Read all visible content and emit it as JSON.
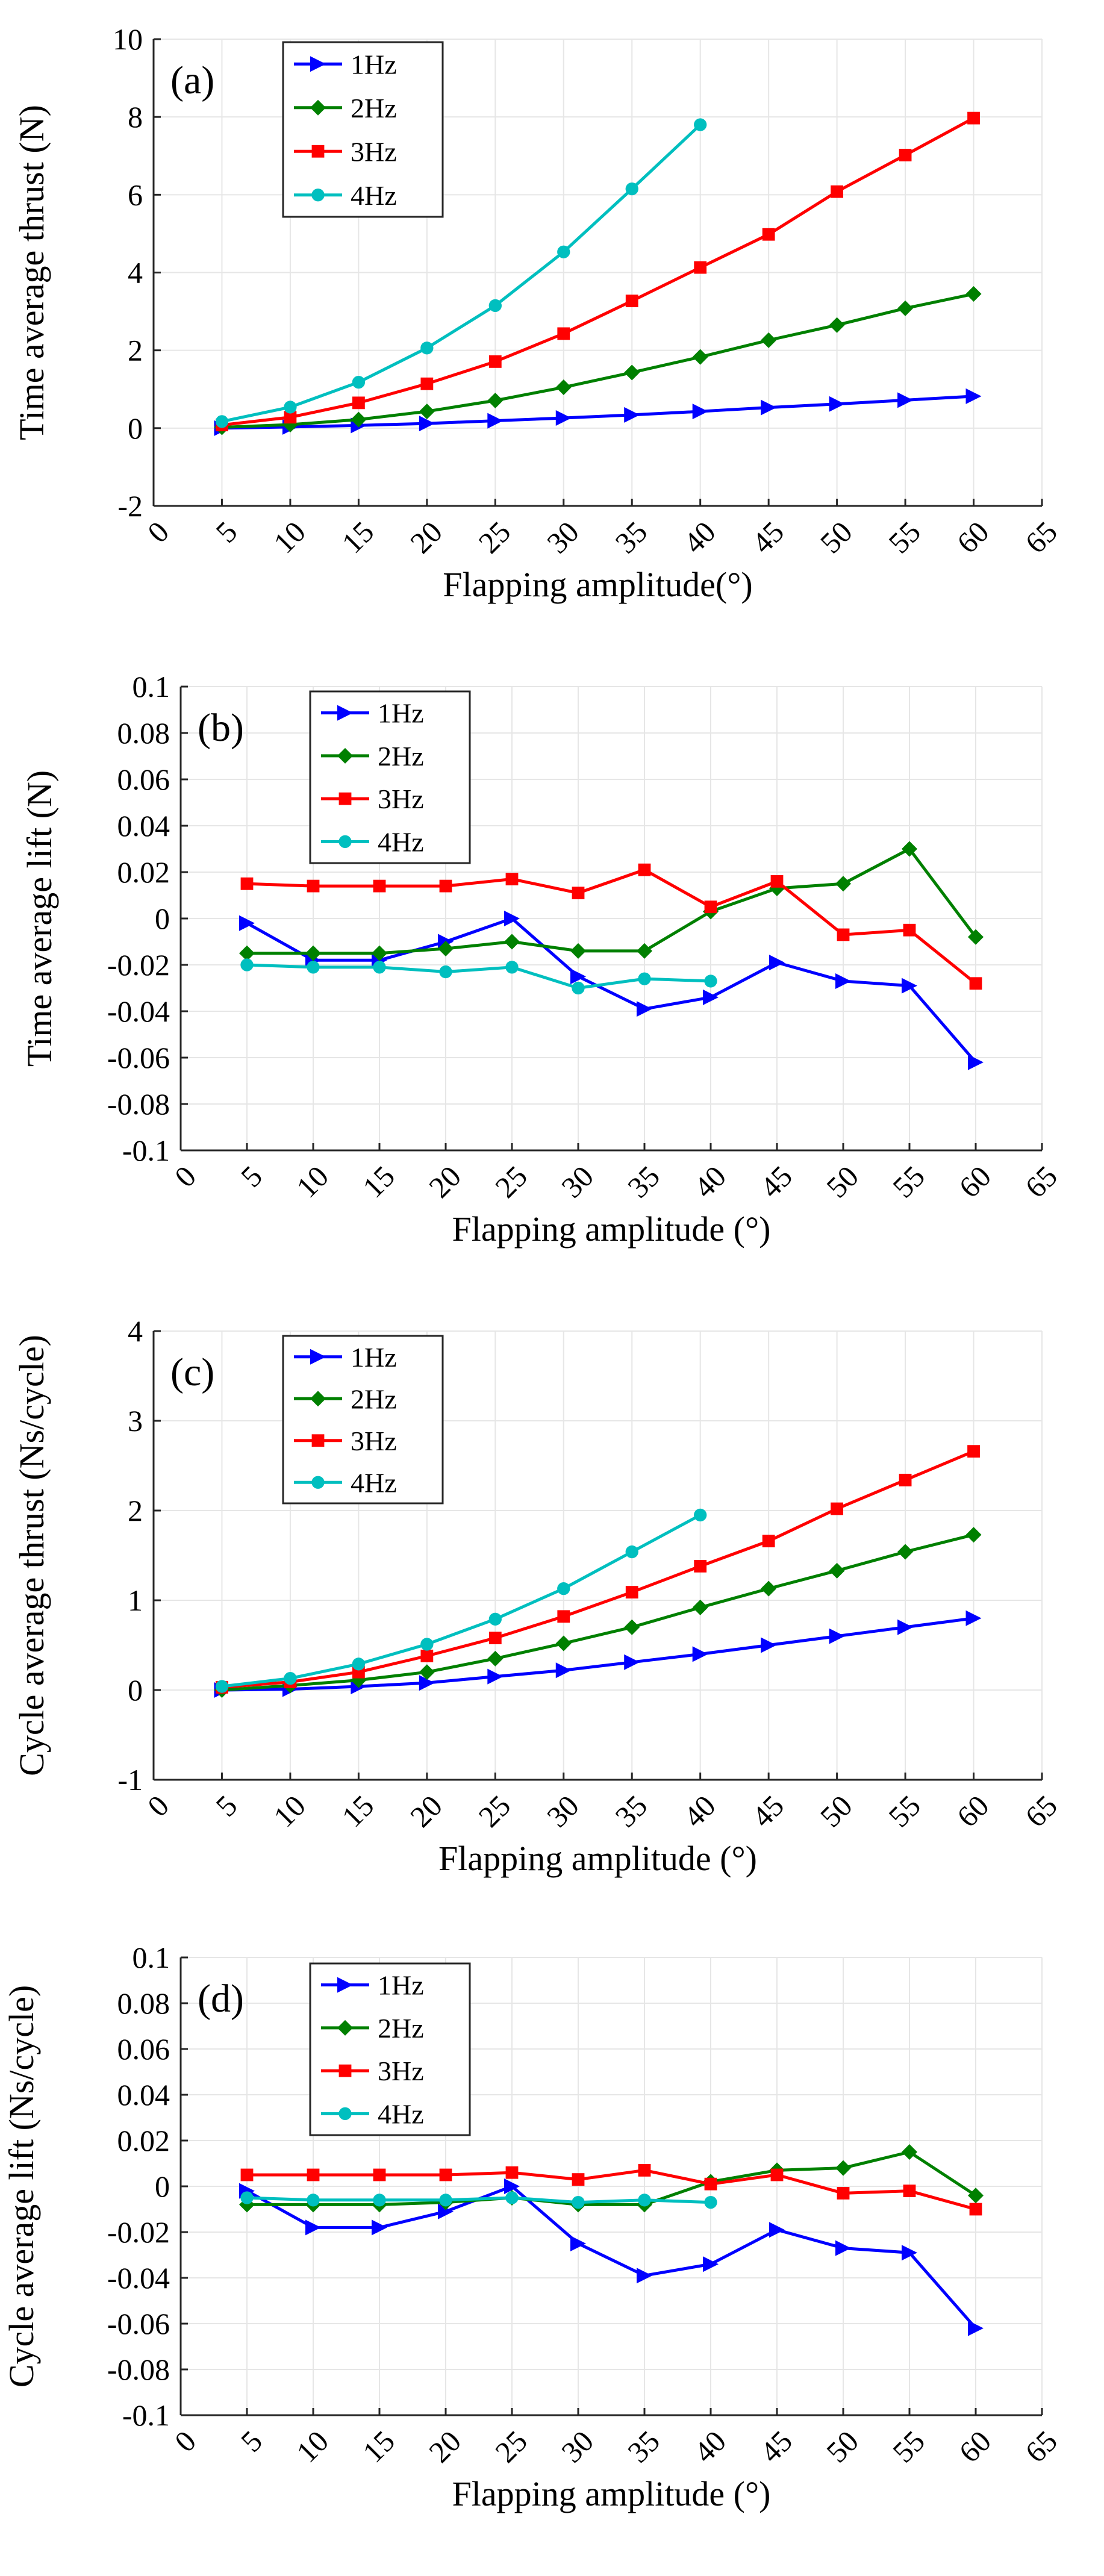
{
  "chart_data": [
    {
      "type": "line",
      "panel_label": "(a)",
      "title": "",
      "xlabel": "Flapping amplitude(°)",
      "ylabel": "Time average thrust (N)",
      "xlim": [
        0,
        65
      ],
      "ylim": [
        -2,
        10
      ],
      "xticks": [
        0,
        5,
        10,
        15,
        20,
        25,
        30,
        35,
        40,
        45,
        50,
        55,
        60,
        65
      ],
      "yticks": [
        -2,
        0,
        2,
        4,
        6,
        8,
        10
      ],
      "xtick_labels": [
        "0",
        "5",
        "10",
        "15",
        "20",
        "25",
        "30",
        "35",
        "40",
        "45",
        "50",
        "55",
        "60",
        "65"
      ],
      "ytick_labels": [
        "-2",
        "0",
        "2",
        "4",
        "6",
        "8",
        "10"
      ],
      "grid": true,
      "legend_position": "top-left",
      "series": [
        {
          "name": "1Hz",
          "color": "#0000ff",
          "marker": "triangle-right",
          "x": [
            5,
            10,
            15,
            20,
            25,
            30,
            35,
            40,
            45,
            50,
            55,
            60
          ],
          "values": [
            0.0,
            0.03,
            0.07,
            0.12,
            0.19,
            0.26,
            0.34,
            0.43,
            0.53,
            0.62,
            0.72,
            0.82
          ]
        },
        {
          "name": "2Hz",
          "color": "#008000",
          "marker": "diamond",
          "x": [
            5,
            10,
            15,
            20,
            25,
            30,
            35,
            40,
            45,
            50,
            55,
            60
          ],
          "values": [
            0.02,
            0.09,
            0.22,
            0.43,
            0.71,
            1.05,
            1.43,
            1.83,
            2.26,
            2.65,
            3.08,
            3.45
          ]
        },
        {
          "name": "3Hz",
          "color": "#ff0000",
          "marker": "square",
          "x": [
            5,
            10,
            15,
            20,
            25,
            30,
            35,
            40,
            45,
            50,
            55,
            60
          ],
          "values": [
            0.08,
            0.28,
            0.65,
            1.14,
            1.71,
            2.43,
            3.27,
            4.13,
            4.98,
            6.08,
            7.02,
            7.97
          ]
        },
        {
          "name": "4Hz",
          "color": "#00bfbf",
          "marker": "circle",
          "x": [
            5,
            10,
            15,
            20,
            25,
            30,
            35,
            40
          ],
          "values": [
            0.17,
            0.54,
            1.18,
            2.06,
            3.15,
            4.53,
            6.15,
            7.8
          ]
        }
      ]
    },
    {
      "type": "line",
      "panel_label": "(b)",
      "title": "",
      "xlabel": "Flapping amplitude (°)",
      "ylabel": "Time average lift (N)",
      "xlim": [
        0,
        65
      ],
      "ylim": [
        -0.1,
        0.1
      ],
      "xticks": [
        0,
        5,
        10,
        15,
        20,
        25,
        30,
        35,
        40,
        45,
        50,
        55,
        60,
        65
      ],
      "yticks": [
        -0.1,
        -0.08,
        -0.06,
        -0.04,
        -0.02,
        0,
        0.02,
        0.04,
        0.06,
        0.08,
        0.1
      ],
      "xtick_labels": [
        "0",
        "5",
        "10",
        "15",
        "20",
        "25",
        "30",
        "35",
        "40",
        "45",
        "50",
        "55",
        "60",
        "65"
      ],
      "ytick_labels": [
        "-0.1",
        "-0.08",
        "-0.06",
        "-0.04",
        "-0.02",
        "0",
        "0.02",
        "0.04",
        "0.06",
        "0.08",
        "0.1"
      ],
      "grid": true,
      "legend_position": "top-left",
      "series": [
        {
          "name": "1Hz",
          "color": "#0000ff",
          "marker": "triangle-right",
          "x": [
            5,
            10,
            15,
            20,
            25,
            30,
            35,
            40,
            45,
            50,
            55,
            60
          ],
          "values": [
            -0.002,
            -0.018,
            -0.018,
            -0.01,
            0.0,
            -0.025,
            -0.039,
            -0.034,
            -0.019,
            -0.027,
            -0.029,
            -0.062
          ]
        },
        {
          "name": "2Hz",
          "color": "#008000",
          "marker": "diamond",
          "x": [
            5,
            10,
            15,
            20,
            25,
            30,
            35,
            40,
            45,
            50,
            55,
            60
          ],
          "values": [
            -0.015,
            -0.015,
            -0.015,
            -0.013,
            -0.01,
            -0.014,
            -0.014,
            0.003,
            0.013,
            0.015,
            0.03,
            -0.008
          ]
        },
        {
          "name": "3Hz",
          "color": "#ff0000",
          "marker": "square",
          "x": [
            5,
            10,
            15,
            20,
            25,
            30,
            35,
            40,
            45,
            50,
            55,
            60
          ],
          "values": [
            0.015,
            0.014,
            0.014,
            0.014,
            0.017,
            0.011,
            0.021,
            0.005,
            0.016,
            -0.007,
            -0.005,
            -0.028
          ]
        },
        {
          "name": "4Hz",
          "color": "#00bfbf",
          "marker": "circle",
          "x": [
            5,
            10,
            15,
            20,
            25,
            30,
            35,
            40
          ],
          "values": [
            -0.02,
            -0.021,
            -0.021,
            -0.023,
            -0.021,
            -0.03,
            -0.026,
            -0.027
          ]
        }
      ]
    },
    {
      "type": "line",
      "panel_label": "(c)",
      "title": "",
      "xlabel": "Flapping amplitude (°)",
      "ylabel": "Cycle average thrust (Ns/cycle)",
      "xlim": [
        0,
        65
      ],
      "ylim": [
        -1,
        4
      ],
      "xticks": [
        0,
        5,
        10,
        15,
        20,
        25,
        30,
        35,
        40,
        45,
        50,
        55,
        60,
        65
      ],
      "yticks": [
        -1,
        0,
        1,
        2,
        3,
        4
      ],
      "xtick_labels": [
        "0",
        "5",
        "10",
        "15",
        "20",
        "25",
        "30",
        "35",
        "40",
        "45",
        "50",
        "55",
        "60",
        "65"
      ],
      "ytick_labels": [
        "-1",
        "0",
        "1",
        "2",
        "3",
        "4"
      ],
      "grid": true,
      "legend_position": "top-left",
      "series": [
        {
          "name": "1Hz",
          "color": "#0000ff",
          "marker": "triangle-right",
          "x": [
            5,
            10,
            15,
            20,
            25,
            30,
            35,
            40,
            45,
            50,
            55,
            60
          ],
          "values": [
            0.0,
            0.01,
            0.04,
            0.08,
            0.15,
            0.22,
            0.31,
            0.4,
            0.5,
            0.6,
            0.7,
            0.8
          ]
        },
        {
          "name": "2Hz",
          "color": "#008000",
          "marker": "diamond",
          "x": [
            5,
            10,
            15,
            20,
            25,
            30,
            35,
            40,
            45,
            50,
            55,
            60
          ],
          "values": [
            0.0,
            0.05,
            0.11,
            0.2,
            0.35,
            0.52,
            0.7,
            0.92,
            1.13,
            1.33,
            1.54,
            1.73
          ]
        },
        {
          "name": "3Hz",
          "color": "#ff0000",
          "marker": "square",
          "x": [
            5,
            10,
            15,
            20,
            25,
            30,
            35,
            40,
            45,
            50,
            55,
            60
          ],
          "values": [
            0.03,
            0.09,
            0.2,
            0.38,
            0.58,
            0.82,
            1.09,
            1.38,
            1.66,
            2.02,
            2.34,
            2.66
          ]
        },
        {
          "name": "4Hz",
          "color": "#00bfbf",
          "marker": "circle",
          "x": [
            5,
            10,
            15,
            20,
            25,
            30,
            35,
            40
          ],
          "values": [
            0.04,
            0.13,
            0.29,
            0.51,
            0.79,
            1.13,
            1.54,
            1.95
          ]
        }
      ]
    },
    {
      "type": "line",
      "panel_label": "(d)",
      "title": "",
      "xlabel": "Flapping amplitude (°)",
      "ylabel": "Cycle average lift (Ns/cycle)",
      "xlim": [
        0,
        65
      ],
      "ylim": [
        -0.1,
        0.1
      ],
      "xticks": [
        0,
        5,
        10,
        15,
        20,
        25,
        30,
        35,
        40,
        45,
        50,
        55,
        60,
        65
      ],
      "yticks": [
        -0.1,
        -0.08,
        -0.06,
        -0.04,
        -0.02,
        0,
        0.02,
        0.04,
        0.06,
        0.08,
        0.1
      ],
      "xtick_labels": [
        "0",
        "5",
        "10",
        "15",
        "20",
        "25",
        "30",
        "35",
        "40",
        "45",
        "50",
        "55",
        "60",
        "65"
      ],
      "ytick_labels": [
        "-0.1",
        "-0.08",
        "-0.06",
        "-0.04",
        "-0.02",
        "0",
        "0.02",
        "0.04",
        "0.06",
        "0.08",
        "0.1"
      ],
      "grid": true,
      "legend_position": "top-left",
      "series": [
        {
          "name": "1Hz",
          "color": "#0000ff",
          "marker": "triangle-right",
          "x": [
            5,
            10,
            15,
            20,
            25,
            30,
            35,
            40,
            45,
            50,
            55,
            60
          ],
          "values": [
            -0.002,
            -0.018,
            -0.018,
            -0.011,
            0.0,
            -0.025,
            -0.039,
            -0.034,
            -0.019,
            -0.027,
            -0.029,
            -0.062
          ]
        },
        {
          "name": "2Hz",
          "color": "#008000",
          "marker": "diamond",
          "x": [
            5,
            10,
            15,
            20,
            25,
            30,
            35,
            40,
            45,
            50,
            55,
            60
          ],
          "values": [
            -0.008,
            -0.008,
            -0.008,
            -0.007,
            -0.005,
            -0.008,
            -0.008,
            0.002,
            0.007,
            0.008,
            0.015,
            -0.004
          ]
        },
        {
          "name": "3Hz",
          "color": "#ff0000",
          "marker": "square",
          "x": [
            5,
            10,
            15,
            20,
            25,
            30,
            35,
            40,
            45,
            50,
            55,
            60
          ],
          "values": [
            0.005,
            0.005,
            0.005,
            0.005,
            0.006,
            0.003,
            0.007,
            0.001,
            0.005,
            -0.003,
            -0.002,
            -0.01
          ]
        },
        {
          "name": "4Hz",
          "color": "#00bfbf",
          "marker": "circle",
          "x": [
            5,
            10,
            15,
            20,
            25,
            30,
            35,
            40
          ],
          "values": [
            -0.005,
            -0.006,
            -0.006,
            -0.006,
            -0.005,
            -0.007,
            -0.006,
            -0.007
          ]
        }
      ]
    }
  ]
}
